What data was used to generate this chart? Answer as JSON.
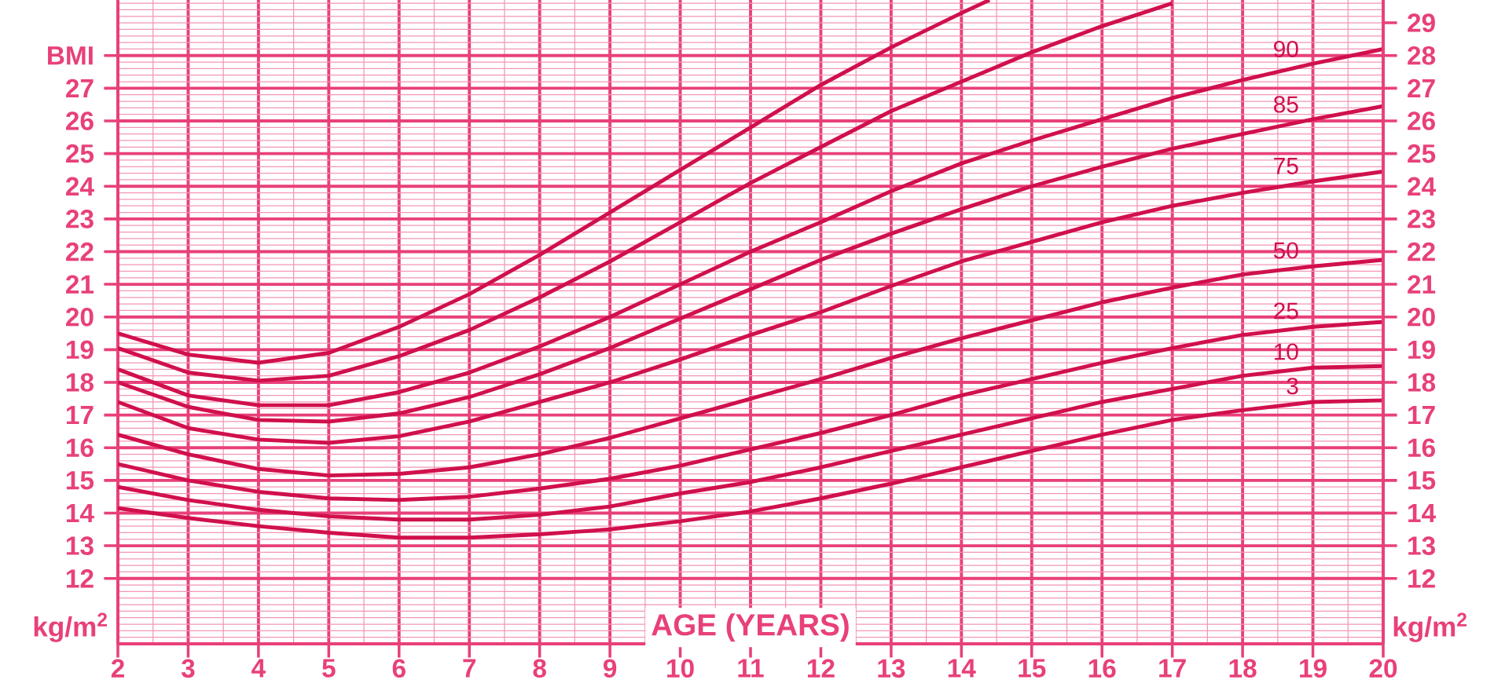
{
  "chart_data": {
    "type": "line",
    "xlabel": "AGE (YEARS)",
    "annotations": [
      "kg/m$^{2}$",
      "kg/m$^{2}$"
    ],
    "x": [
      2,
      3,
      4,
      5,
      6,
      7,
      8,
      9,
      10,
      11,
      12,
      13,
      14,
      15,
      16,
      17,
      18,
      19,
      20
    ],
    "series": [
      {
        "color": "#d0104c",
        "x": [
          2,
          3,
          4,
          5,
          6,
          7,
          8,
          9,
          10,
          11,
          12,
          13,
          14,
          14.4
        ],
        "values": [
          19.5,
          18.85,
          18.6,
          18.9,
          19.7,
          20.7,
          21.9,
          23.2,
          24.5,
          25.8,
          27.1,
          28.25,
          29.3,
          29.7
        ]
      },
      {
        "color": "#d0104c",
        "x": [
          2,
          3,
          4,
          5,
          6,
          7,
          8,
          9,
          10,
          11,
          12,
          13,
          14,
          15,
          16,
          17
        ],
        "values": [
          19.05,
          18.3,
          18.05,
          18.2,
          18.8,
          19.6,
          20.6,
          21.7,
          22.9,
          24.1,
          25.2,
          26.3,
          27.2,
          28.1,
          28.9,
          29.6
        ]
      },
      {
        "name": "90",
        "color": "#d0104c",
        "values": [
          18.4,
          17.6,
          17.3,
          17.3,
          17.7,
          18.3,
          19.1,
          20.0,
          21.0,
          22.0,
          22.9,
          23.85,
          24.7,
          25.4,
          26.05,
          26.7,
          27.25,
          27.75,
          28.2
        ]
      },
      {
        "name": "85",
        "color": "#d0104c",
        "values": [
          18.0,
          17.25,
          16.85,
          16.8,
          17.05,
          17.55,
          18.25,
          19.05,
          19.95,
          20.85,
          21.75,
          22.55,
          23.3,
          24.0,
          24.6,
          25.15,
          25.6,
          26.05,
          26.45
        ]
      },
      {
        "name": "75",
        "color": "#d0104c",
        "values": [
          17.4,
          16.6,
          16.25,
          16.15,
          16.35,
          16.8,
          17.4,
          18.0,
          18.7,
          19.45,
          20.15,
          20.95,
          21.7,
          22.3,
          22.9,
          23.4,
          23.8,
          24.15,
          24.45
        ]
      },
      {
        "name": "50",
        "color": "#d0104c",
        "values": [
          16.4,
          15.8,
          15.35,
          15.15,
          15.2,
          15.4,
          15.8,
          16.3,
          16.9,
          17.5,
          18.1,
          18.75,
          19.35,
          19.9,
          20.45,
          20.9,
          21.3,
          21.55,
          21.75
        ]
      },
      {
        "name": "25",
        "color": "#d0104c",
        "values": [
          15.5,
          15.0,
          14.65,
          14.45,
          14.4,
          14.5,
          14.75,
          15.05,
          15.45,
          15.95,
          16.45,
          17.0,
          17.6,
          18.1,
          18.6,
          19.05,
          19.45,
          19.7,
          19.85
        ]
      },
      {
        "name": "10",
        "color": "#d0104c",
        "values": [
          14.8,
          14.4,
          14.1,
          13.9,
          13.8,
          13.8,
          13.95,
          14.2,
          14.6,
          14.95,
          15.4,
          15.9,
          16.4,
          16.9,
          17.4,
          17.8,
          18.2,
          18.45,
          18.5
        ]
      },
      {
        "name": "3",
        "color": "#d0104c",
        "values": [
          14.15,
          13.85,
          13.6,
          13.4,
          13.25,
          13.25,
          13.35,
          13.5,
          13.75,
          14.05,
          14.45,
          14.9,
          15.4,
          15.9,
          16.4,
          16.85,
          17.15,
          17.4,
          17.45
        ]
      }
    ],
    "xlim": [
      2,
      20
    ],
    "ylim": [
      10,
      29.7
    ],
    "xticks": [
      2,
      3,
      4,
      5,
      6,
      7,
      8,
      9,
      10,
      11,
      12,
      13,
      14,
      15,
      16,
      17,
      18,
      19,
      20
    ],
    "yticks": [
      12,
      13,
      14,
      15,
      16,
      17,
      18,
      19,
      20,
      21,
      22,
      23,
      24,
      25,
      26,
      27,
      {
        "value": 28,
        "label": "BMI"
      }
    ],
    "y2lim": [
      10,
      29.7
    ],
    "y2ticks": [
      12,
      13,
      14,
      15,
      16,
      17,
      18,
      19,
      20,
      21,
      22,
      23,
      24,
      25,
      26,
      27,
      28,
      29
    ],
    "grid": true,
    "marker": "none",
    "line_style": "solid"
  }
}
